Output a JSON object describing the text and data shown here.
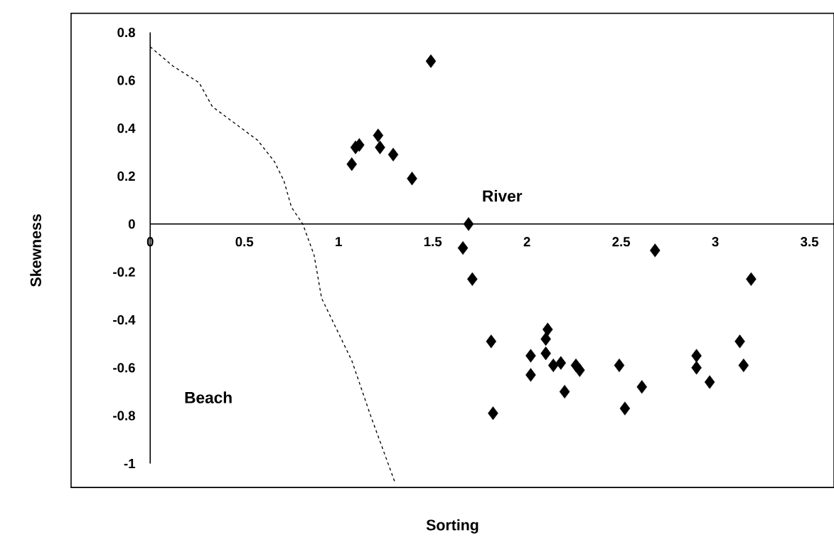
{
  "chart_data": {
    "type": "scatter",
    "xlabel": "Sorting",
    "ylabel": "Skewness",
    "xlim": [
      -0.42,
      3.63
    ],
    "ylim": [
      -1.1,
      0.88
    ],
    "xticks": [
      0,
      0.5,
      1,
      1.5,
      2,
      2.5,
      3,
      3.5
    ],
    "yticks": [
      -1,
      -0.8,
      -0.6,
      -0.4,
      -0.2,
      0,
      0.2,
      0.4,
      0.6,
      0.8
    ],
    "grid": false,
    "annotations": [
      "River",
      "Beach"
    ],
    "series": [
      {
        "color": "#000000",
        "marker": "diamond",
        "x": [
          1.49,
          1.07,
          1.09,
          1.11,
          1.21,
          1.22,
          1.29,
          1.39,
          1.69,
          1.66,
          1.71,
          2.68,
          3.19,
          1.81,
          1.82,
          2.02,
          2.02,
          2.1,
          2.1,
          2.11,
          2.14,
          2.18,
          2.2,
          2.26,
          2.28,
          2.49,
          2.52,
          2.61,
          2.9,
          2.9,
          2.97,
          3.13,
          3.15
        ],
        "values": [
          0.68,
          0.25,
          0.32,
          0.33,
          0.37,
          0.32,
          0.29,
          0.19,
          0.0,
          -0.1,
          -0.23,
          -0.11,
          -0.23,
          -0.49,
          -0.79,
          -0.63,
          -0.55,
          -0.54,
          -0.48,
          -0.44,
          -0.59,
          -0.58,
          -0.7,
          -0.59,
          -0.61,
          -0.59,
          -0.77,
          -0.68,
          -0.55,
          -0.6,
          -0.66,
          -0.49,
          -0.59
        ]
      },
      {
        "type": "line",
        "color": "#000000",
        "marker": "none",
        "line_style": "dashed",
        "x": [
          0,
          0.12,
          0.26,
          0.33,
          0.45,
          0.57,
          0.66,
          0.71,
          0.75,
          0.81,
          0.87,
          0.91,
          1.07,
          1.17,
          1.3
        ],
        "values": [
          0.74,
          0.66,
          0.59,
          0.49,
          0.42,
          0.35,
          0.26,
          0.18,
          0.07,
          0.0,
          -0.13,
          -0.31,
          -0.57,
          -0.8,
          -1.08
        ]
      }
    ]
  }
}
